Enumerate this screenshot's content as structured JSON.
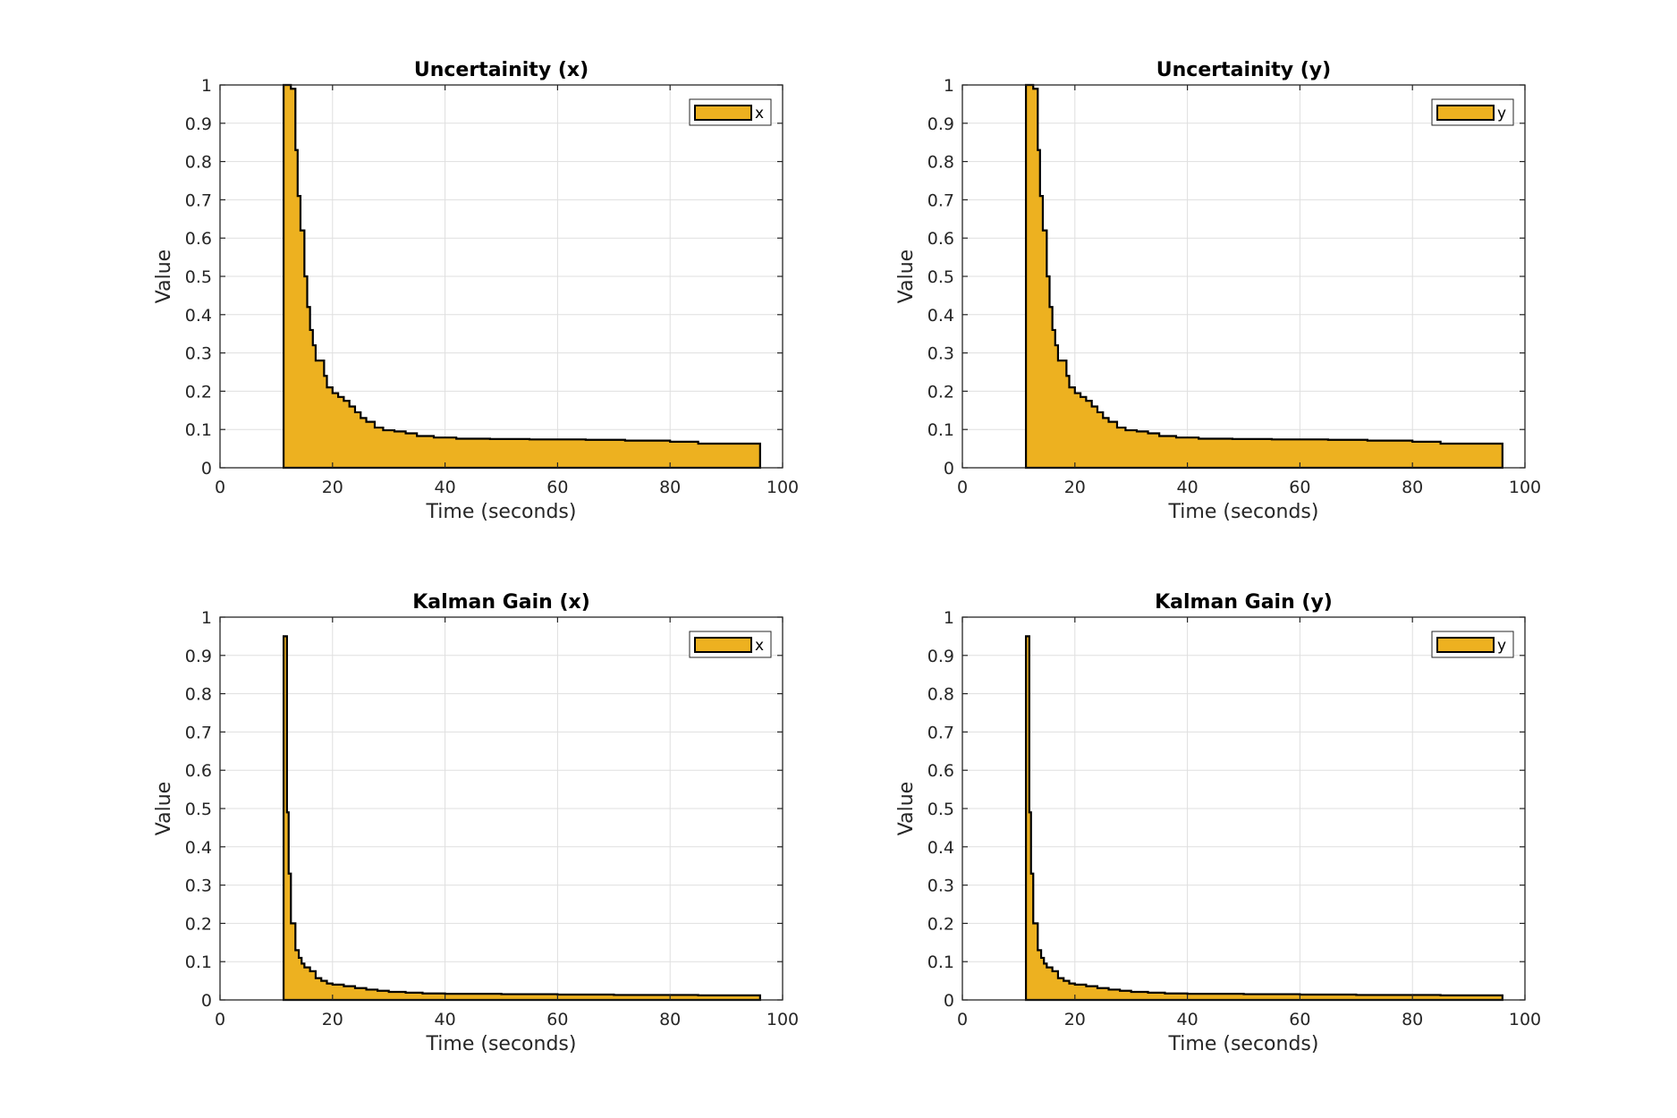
{
  "chart_data": [
    {
      "type": "area",
      "title": "Uncertainity (x)",
      "xlabel": "Time (seconds)",
      "ylabel": "Value",
      "xlim": [
        0,
        100
      ],
      "ylim": [
        0,
        1
      ],
      "xticks": [
        "0",
        "20",
        "40",
        "60",
        "80",
        "100"
      ],
      "yticks": [
        "0",
        "0.1",
        "0.2",
        "0.3",
        "0.4",
        "0.5",
        "0.6",
        "0.7",
        "0.8",
        "0.9",
        "1"
      ],
      "grid": true,
      "legend_position": "top-right",
      "series": [
        {
          "name": "x",
          "color": "#EDB120",
          "edge_color": "#000000",
          "x": [
            11.3,
            12.6,
            13.4,
            13.8,
            14.3,
            15.0,
            15.5,
            16.0,
            16.5,
            17.0,
            18.5,
            19.0,
            20.0,
            21.0,
            22.0,
            23.0,
            24.0,
            25.0,
            26.0,
            27.5,
            29.0,
            31.0,
            33.0,
            35.0,
            38.0,
            42.0,
            48.0,
            55.0,
            65.0,
            72.0,
            80.0,
            85.0,
            96.0
          ],
          "y": [
            1.0,
            0.99,
            0.83,
            0.71,
            0.62,
            0.5,
            0.42,
            0.36,
            0.32,
            0.28,
            0.24,
            0.21,
            0.195,
            0.185,
            0.175,
            0.16,
            0.145,
            0.13,
            0.12,
            0.105,
            0.098,
            0.095,
            0.09,
            0.083,
            0.079,
            0.076,
            0.075,
            0.074,
            0.073,
            0.071,
            0.068,
            0.063,
            0.062
          ]
        }
      ]
    },
    {
      "type": "area",
      "title": "Uncertainity (y)",
      "xlabel": "Time (seconds)",
      "ylabel": "Value",
      "xlim": [
        0,
        100
      ],
      "ylim": [
        0,
        1
      ],
      "xticks": [
        "0",
        "20",
        "40",
        "60",
        "80",
        "100"
      ],
      "yticks": [
        "0",
        "0.1",
        "0.2",
        "0.3",
        "0.4",
        "0.5",
        "0.6",
        "0.7",
        "0.8",
        "0.9",
        "1"
      ],
      "grid": true,
      "legend_position": "top-right",
      "series": [
        {
          "name": "y",
          "color": "#EDB120",
          "edge_color": "#000000",
          "x": [
            11.3,
            12.6,
            13.4,
            13.8,
            14.3,
            15.0,
            15.5,
            16.0,
            16.5,
            17.0,
            18.5,
            19.0,
            20.0,
            21.0,
            22.0,
            23.0,
            24.0,
            25.0,
            26.0,
            27.5,
            29.0,
            31.0,
            33.0,
            35.0,
            38.0,
            42.0,
            48.0,
            55.0,
            65.0,
            72.0,
            80.0,
            85.0,
            96.0
          ],
          "y": [
            1.0,
            0.99,
            0.83,
            0.71,
            0.62,
            0.5,
            0.42,
            0.36,
            0.32,
            0.28,
            0.24,
            0.21,
            0.195,
            0.185,
            0.175,
            0.16,
            0.145,
            0.13,
            0.12,
            0.105,
            0.098,
            0.095,
            0.09,
            0.083,
            0.079,
            0.076,
            0.075,
            0.074,
            0.073,
            0.071,
            0.068,
            0.063,
            0.062
          ]
        }
      ]
    },
    {
      "type": "area",
      "title": "Kalman Gain (x)",
      "xlabel": "Time (seconds)",
      "ylabel": "Value",
      "xlim": [
        0,
        100
      ],
      "ylim": [
        0,
        1
      ],
      "xticks": [
        "0",
        "20",
        "40",
        "60",
        "80",
        "100"
      ],
      "yticks": [
        "0",
        "0.1",
        "0.2",
        "0.3",
        "0.4",
        "0.5",
        "0.6",
        "0.7",
        "0.8",
        "0.9",
        "1"
      ],
      "grid": true,
      "legend_position": "top-right",
      "series": [
        {
          "name": "x",
          "color": "#EDB120",
          "edge_color": "#000000",
          "x": [
            11.3,
            11.9,
            12.2,
            12.6,
            13.4,
            14.0,
            14.5,
            15.0,
            16.0,
            17.0,
            18.0,
            19.0,
            20.0,
            22.0,
            24.0,
            26.0,
            28.0,
            30.0,
            33.0,
            36.0,
            40.0,
            50.0,
            60.0,
            70.0,
            85.0,
            96.0
          ],
          "y": [
            0.95,
            0.49,
            0.33,
            0.2,
            0.13,
            0.11,
            0.095,
            0.085,
            0.075,
            0.057,
            0.05,
            0.043,
            0.04,
            0.036,
            0.031,
            0.027,
            0.024,
            0.021,
            0.019,
            0.017,
            0.016,
            0.015,
            0.014,
            0.013,
            0.012,
            0.011
          ]
        }
      ]
    },
    {
      "type": "area",
      "title": "Kalman Gain (y)",
      "xlabel": "Time (seconds)",
      "ylabel": "Value",
      "xlim": [
        0,
        100
      ],
      "ylim": [
        0,
        1
      ],
      "xticks": [
        "0",
        "20",
        "40",
        "60",
        "80",
        "100"
      ],
      "yticks": [
        "0",
        "0.1",
        "0.2",
        "0.3",
        "0.4",
        "0.5",
        "0.6",
        "0.7",
        "0.8",
        "0.9",
        "1"
      ],
      "grid": true,
      "legend_position": "top-right",
      "series": [
        {
          "name": "y",
          "color": "#EDB120",
          "edge_color": "#000000",
          "x": [
            11.3,
            11.9,
            12.2,
            12.6,
            13.4,
            14.0,
            14.5,
            15.0,
            16.0,
            17.0,
            18.0,
            19.0,
            20.0,
            22.0,
            24.0,
            26.0,
            28.0,
            30.0,
            33.0,
            36.0,
            40.0,
            50.0,
            60.0,
            70.0,
            85.0,
            96.0
          ],
          "y": [
            0.95,
            0.49,
            0.33,
            0.2,
            0.13,
            0.11,
            0.095,
            0.085,
            0.075,
            0.057,
            0.05,
            0.043,
            0.04,
            0.036,
            0.031,
            0.027,
            0.024,
            0.021,
            0.019,
            0.017,
            0.016,
            0.015,
            0.014,
            0.013,
            0.012,
            0.011
          ]
        }
      ]
    }
  ]
}
